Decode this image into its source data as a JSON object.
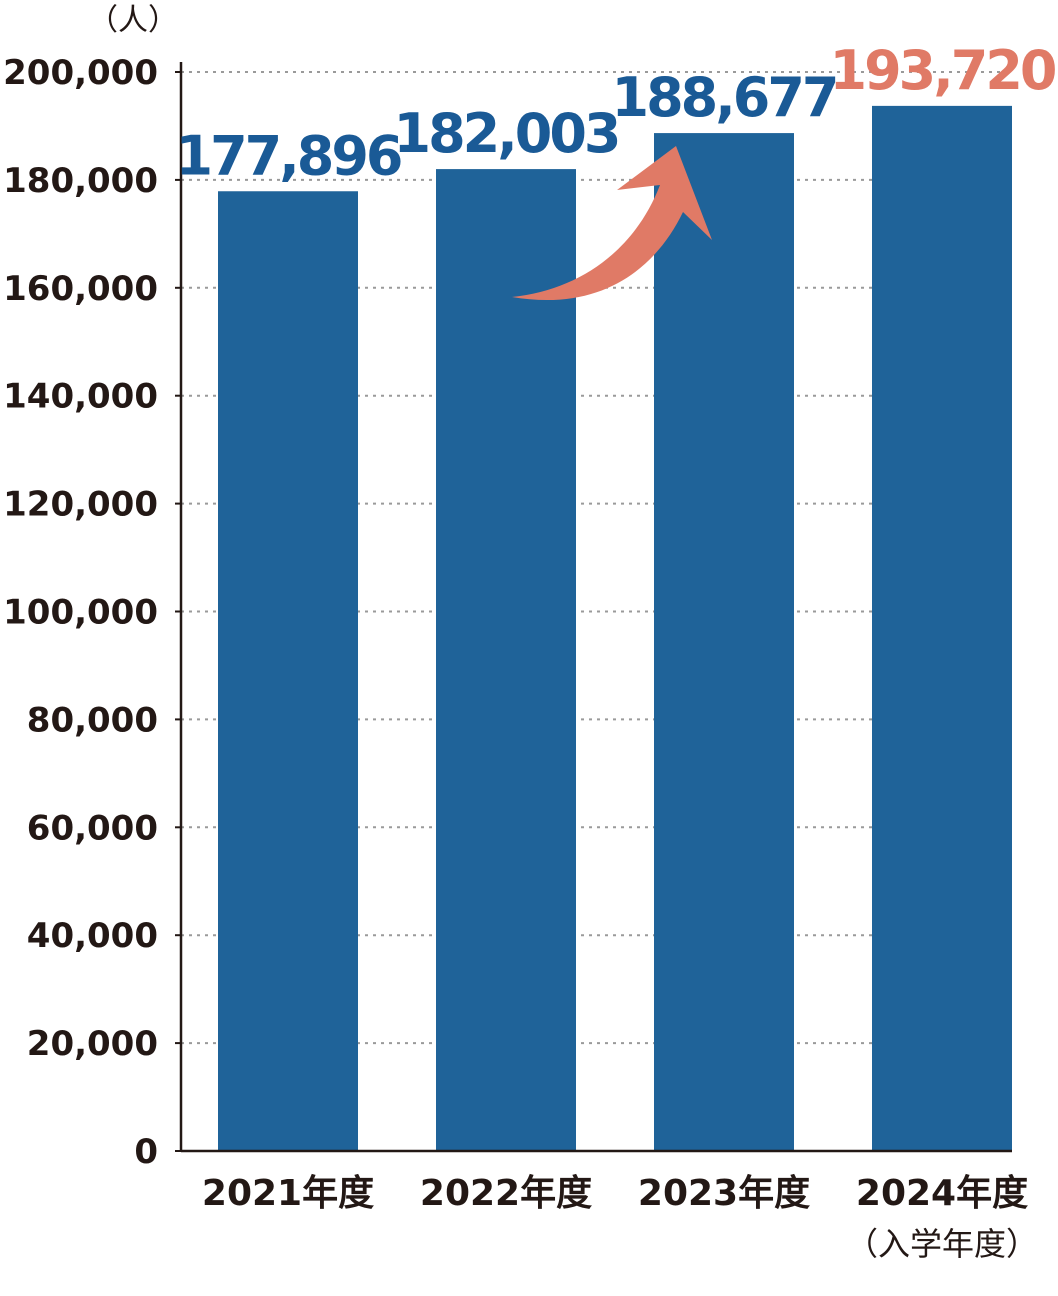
{
  "chart_data": {
    "type": "bar",
    "unit_label": "（人）",
    "categories": [
      "2021年度",
      "2022年度",
      "2023年度",
      "2024年度"
    ],
    "category_sublabels": [
      "",
      "",
      "",
      "（入学年度）"
    ],
    "values": [
      177896,
      182003,
      188677,
      193720
    ],
    "data_labels": [
      "177,896",
      "182,003",
      "188,677",
      "193,720"
    ],
    "ylim": [
      0,
      200000
    ],
    "yticks": [
      0,
      20000,
      40000,
      60000,
      80000,
      100000,
      120000,
      140000,
      160000,
      180000,
      200000
    ],
    "ytick_labels": [
      "0",
      "20,000",
      "40,000",
      "60,000",
      "80,000",
      "100,000",
      "120,000",
      "140,000",
      "160,000",
      "180,000",
      "200,000"
    ],
    "grid": true,
    "colors": {
      "bar": "#1f6399",
      "label": "#1a5a96",
      "highlight_label": "#e07a66",
      "arrow": "#e07a66",
      "axis": "#231815",
      "grid": "#9a9a9a"
    },
    "highlight_index": 3,
    "annotation": "rising-arrow-icon"
  }
}
